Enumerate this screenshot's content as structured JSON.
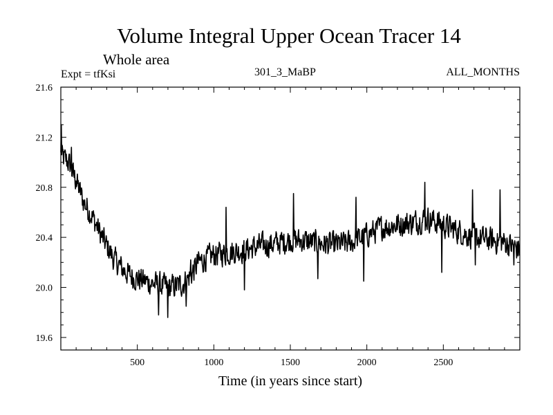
{
  "chart_data": {
    "type": "line",
    "title": "Volume Integral Upper Ocean Tracer 14",
    "subtitle": "Whole area",
    "experiment_label": "Expt = tfKsi",
    "run_label": "301_3_MaBP",
    "months_label": "ALL_MONTHS",
    "xlabel": "Time (in years since start)",
    "ylabel": "",
    "xlim": [
      0,
      3000
    ],
    "ylim": [
      19.5,
      21.6
    ],
    "x_ticks": [
      500,
      1000,
      1500,
      2000,
      2500
    ],
    "y_ticks": [
      19.6,
      20.0,
      20.4,
      20.8,
      21.2,
      21.6
    ],
    "y_tick_labels": [
      "19.6",
      "20.0",
      "20.4",
      "20.8",
      "21.2",
      "21.6"
    ],
    "x_tick_labels": [
      "500",
      "1000",
      "1500",
      "2000",
      "2500"
    ],
    "series": [
      {
        "name": "Upper Ocean Tracer 14 volume integral",
        "color": "#000000",
        "trend_points": [
          [
            0,
            21.05
          ],
          [
            50,
            21.0
          ],
          [
            100,
            20.85
          ],
          [
            150,
            20.68
          ],
          [
            200,
            20.58
          ],
          [
            250,
            20.45
          ],
          [
            300,
            20.33
          ],
          [
            350,
            20.22
          ],
          [
            400,
            20.15
          ],
          [
            450,
            20.1
          ],
          [
            500,
            20.07
          ],
          [
            550,
            20.05
          ],
          [
            600,
            20.03
          ],
          [
            650,
            20.02
          ],
          [
            700,
            20.0
          ],
          [
            750,
            20.01
          ],
          [
            800,
            20.03
          ],
          [
            850,
            20.1
          ],
          [
            900,
            20.2
          ],
          [
            1000,
            20.26
          ],
          [
            1100,
            20.28
          ],
          [
            1200,
            20.3
          ],
          [
            1300,
            20.33
          ],
          [
            1400,
            20.35
          ],
          [
            1500,
            20.38
          ],
          [
            1600,
            20.37
          ],
          [
            1700,
            20.35
          ],
          [
            1800,
            20.34
          ],
          [
            1900,
            20.36
          ],
          [
            2000,
            20.42
          ],
          [
            2100,
            20.48
          ],
          [
            2200,
            20.5
          ],
          [
            2300,
            20.52
          ],
          [
            2400,
            20.55
          ],
          [
            2500,
            20.5
          ],
          [
            2600,
            20.45
          ],
          [
            2700,
            20.4
          ],
          [
            2800,
            20.38
          ],
          [
            2900,
            20.36
          ],
          [
            3000,
            20.3
          ]
        ],
        "noise_amplitude": 0.13,
        "spikes": [
          [
            2,
            21.3
          ],
          [
            70,
            21.12
          ],
          [
            100,
            20.85
          ],
          [
            640,
            19.78
          ],
          [
            700,
            19.76
          ],
          [
            820,
            19.85
          ],
          [
            850,
            20.22
          ],
          [
            1080,
            20.64
          ],
          [
            1200,
            19.98
          ],
          [
            1520,
            20.75
          ],
          [
            1680,
            20.07
          ],
          [
            1930,
            20.72
          ],
          [
            1980,
            20.05
          ],
          [
            2380,
            20.84
          ],
          [
            2490,
            20.12
          ],
          [
            2690,
            20.78
          ],
          [
            2710,
            20.18
          ],
          [
            2870,
            20.78
          ],
          [
            2960,
            20.18
          ]
        ]
      }
    ]
  }
}
